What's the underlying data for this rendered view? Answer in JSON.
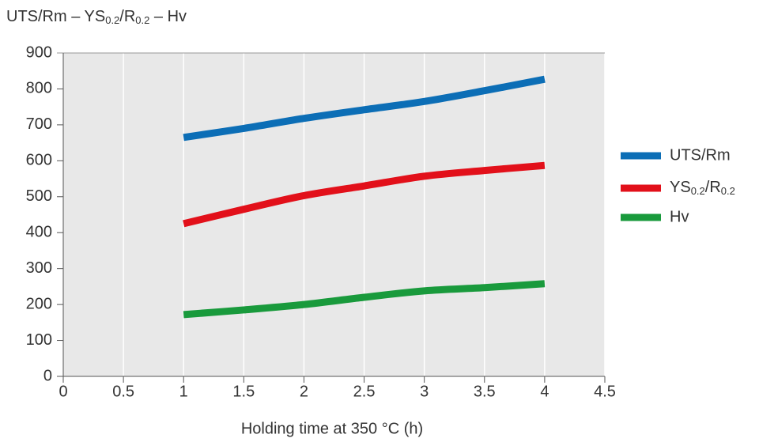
{
  "chart_data": {
    "type": "line",
    "y_label": "UTS/Rm – YS0.2/R0.2 – Hv",
    "x_label": "Holding time at 350 °C (h)",
    "x": [
      1,
      1.5,
      2,
      2.5,
      3,
      3.5,
      4
    ],
    "series": [
      {
        "name": "UTS/Rm",
        "color": "#0c6eb6",
        "values": [
          665,
          690,
          718,
          742,
          765,
          795,
          827
        ]
      },
      {
        "name": "YS0.2/R0.2",
        "color": "#e2101a",
        "values": [
          425,
          465,
          503,
          530,
          557,
          573,
          587
        ]
      },
      {
        "name": "Hv",
        "color": "#199a3c",
        "values": [
          172,
          185,
          200,
          220,
          238,
          247,
          258
        ]
      }
    ],
    "xlim": [
      0,
      4.5
    ],
    "xticks": [
      0,
      0.5,
      1,
      1.5,
      2,
      2.5,
      3,
      3.5,
      4,
      4.5
    ],
    "ylim": [
      0,
      900
    ],
    "yticks": [
      0,
      100,
      200,
      300,
      400,
      500,
      600,
      700,
      800,
      900
    ],
    "grid": true,
    "legend": "right"
  }
}
